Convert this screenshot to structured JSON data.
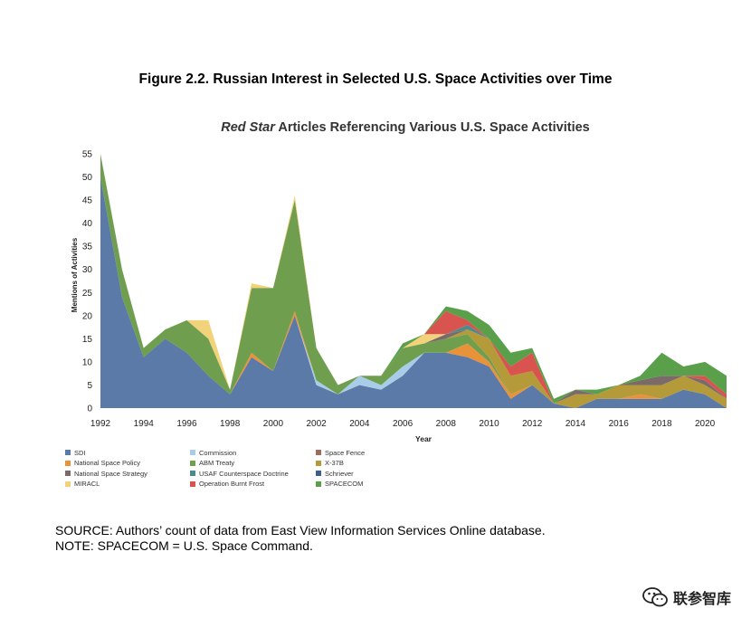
{
  "figure_title": "Figure 2.2. Russian Interest in Selected U.S. Space Activities over Time",
  "chart_data": {
    "type": "area",
    "stacked": true,
    "title_italic": "Red Star",
    "title_rest": " Articles Referencing Various U.S. Space Activities",
    "xlabel": "Year",
    "ylabel": "Mentions of Activities",
    "xlim": [
      1992,
      2021
    ],
    "ylim": [
      0,
      55
    ],
    "x_ticks": [
      1992,
      1994,
      1996,
      1998,
      2000,
      2002,
      2004,
      2006,
      2008,
      2010,
      2012,
      2014,
      2016,
      2018,
      2020
    ],
    "y_ticks": [
      0,
      5,
      10,
      15,
      20,
      25,
      30,
      35,
      40,
      45,
      50,
      55
    ],
    "legend_position": "bottom",
    "x": [
      1992,
      1993,
      1994,
      1995,
      1996,
      1997,
      1998,
      1999,
      2000,
      2001,
      2002,
      2003,
      2004,
      2005,
      2006,
      2007,
      2008,
      2009,
      2010,
      2011,
      2012,
      2013,
      2014,
      2015,
      2016,
      2017,
      2018,
      2019,
      2020,
      2021
    ],
    "series": [
      {
        "name": "SDI",
        "color": "#5b7aa8",
        "values": [
          50,
          24,
          11,
          15,
          12,
          7,
          3,
          11,
          8,
          20,
          5,
          3,
          5,
          4,
          7,
          12,
          12,
          11,
          9,
          2,
          5,
          1,
          0,
          2,
          2,
          2,
          2,
          4,
          3,
          0
        ]
      },
      {
        "name": "Commission",
        "color": "#a9cde8",
        "values": [
          0,
          0,
          0,
          0,
          0,
          0,
          0,
          0,
          0,
          0,
          1,
          0,
          2,
          1,
          2,
          0,
          0,
          0,
          0,
          0,
          0,
          0,
          0,
          0,
          0,
          0,
          0,
          0,
          0,
          0
        ]
      },
      {
        "name": "Space Fence",
        "color": "#a06a5c",
        "values": [
          0,
          0,
          0,
          0,
          0,
          0,
          0,
          0,
          0,
          0,
          0,
          0,
          0,
          0,
          0,
          0,
          0,
          0,
          0,
          0,
          0,
          0,
          0,
          0,
          0,
          0,
          0,
          0,
          0,
          0
        ]
      },
      {
        "name": "National Space Policy",
        "color": "#e8923a",
        "values": [
          0,
          0,
          0,
          0,
          0,
          0,
          0,
          1,
          0,
          1,
          0,
          0,
          0,
          0,
          0,
          0,
          0,
          3,
          1,
          1,
          0,
          0,
          0,
          0,
          0,
          1,
          0,
          0,
          0,
          0
        ]
      },
      {
        "name": "ABM Treaty",
        "color": "#6e9e4e",
        "values": [
          5,
          6,
          2,
          2,
          7,
          8,
          1,
          14,
          18,
          24,
          7,
          2,
          0,
          2,
          4,
          2,
          3,
          2,
          1,
          0,
          0,
          0,
          0,
          0,
          0,
          0,
          0,
          0,
          0,
          0
        ]
      },
      {
        "name": "X-37B",
        "color": "#b59a3a",
        "values": [
          0,
          0,
          0,
          0,
          0,
          0,
          0,
          0,
          0,
          0,
          0,
          0,
          0,
          0,
          0,
          0,
          0,
          1,
          4,
          4,
          3,
          0,
          3,
          1,
          3,
          2,
          3,
          3,
          2,
          2
        ]
      },
      {
        "name": "National Space Strategy",
        "color": "#7a6a6a",
        "values": [
          0,
          0,
          0,
          0,
          0,
          0,
          0,
          0,
          0,
          0,
          0,
          0,
          0,
          0,
          0,
          0,
          1,
          0,
          0,
          0,
          0,
          0,
          1,
          0,
          0,
          1,
          2,
          0,
          1,
          0
        ]
      },
      {
        "name": "USAF Counterspace Doctrine",
        "color": "#4f8a8b",
        "values": [
          0,
          0,
          0,
          0,
          0,
          0,
          0,
          0,
          0,
          0,
          0,
          0,
          0,
          0,
          0,
          0,
          0,
          1,
          0,
          0,
          0,
          0,
          0,
          0,
          0,
          0,
          0,
          0,
          0,
          0
        ]
      },
      {
        "name": "Schriever",
        "color": "#3d5f8f",
        "values": [
          0,
          0,
          0,
          0,
          0,
          0,
          0,
          0,
          0,
          0,
          0,
          0,
          0,
          0,
          0,
          0,
          0,
          0,
          0,
          0,
          0,
          0,
          0,
          0,
          0,
          0,
          0,
          0,
          0,
          0
        ]
      },
      {
        "name": "MIRACL",
        "color": "#f2d27a",
        "values": [
          0,
          0,
          0,
          0,
          0,
          4,
          0,
          1,
          0,
          1,
          0,
          0,
          0,
          0,
          0,
          2,
          0,
          0,
          0,
          0,
          0,
          0,
          0,
          0,
          0,
          0,
          0,
          0,
          0,
          0
        ]
      },
      {
        "name": "Operation Burnt Frost",
        "color": "#d9534f",
        "values": [
          0,
          0,
          0,
          0,
          0,
          0,
          0,
          0,
          0,
          0,
          0,
          0,
          0,
          0,
          0,
          0,
          5,
          1,
          0,
          2,
          4,
          0,
          0,
          0,
          0,
          0,
          0,
          0,
          1,
          1
        ]
      },
      {
        "name": "SPACECOM",
        "color": "#5aa04a",
        "values": [
          0,
          0,
          0,
          0,
          0,
          0,
          0,
          0,
          0,
          0,
          0,
          0,
          0,
          0,
          1,
          0,
          1,
          2,
          3,
          3,
          1,
          1,
          0,
          1,
          0,
          1,
          5,
          2,
          3,
          4
        ]
      }
    ]
  },
  "legend_columns": [
    [
      "SDI",
      "National Space Policy",
      "National Space Strategy",
      "MIRACL"
    ],
    [
      "Commission",
      "ABM Treaty",
      "USAF Counterspace Doctrine",
      "Operation Burnt Frost"
    ],
    [
      "Space Fence",
      "X-37B",
      "Schriever",
      "SPACECOM"
    ]
  ],
  "source_line": "SOURCE: Authors’ count of data from East View Information Services Online database.",
  "note_line": "NOTE: SPACECOM = U.S. Space Command.",
  "watermark_text": "联参智库"
}
